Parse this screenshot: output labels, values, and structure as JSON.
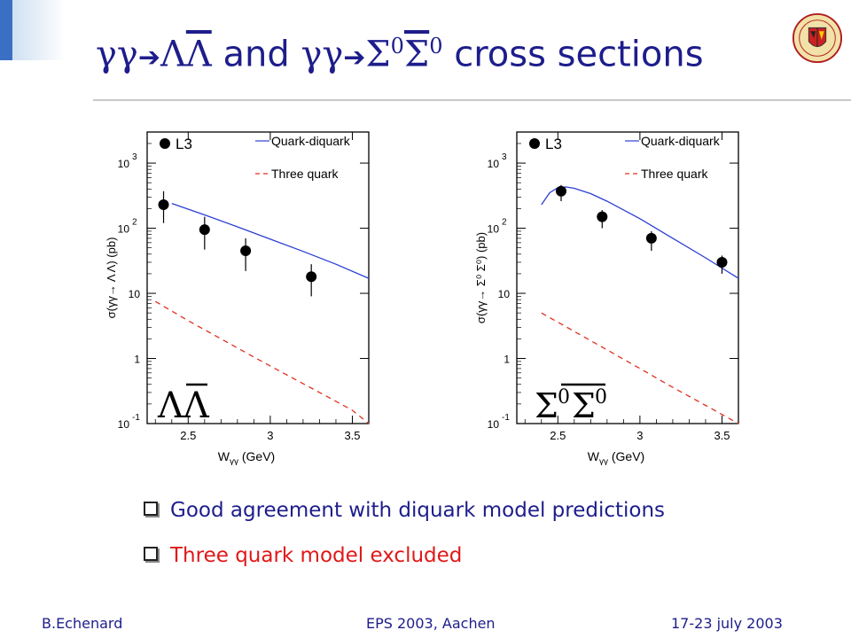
{
  "slide": {
    "title_gg1": "γγ",
    "title_arrow1": "➔",
    "title_lam1": "Λ",
    "title_lam2": "Λ",
    "title_and": "and",
    "title_gg2": "γγ",
    "title_arrow2": "➔",
    "title_sig1": "Σ",
    "title_sup1": "0",
    "title_sig2": "Σ",
    "title_sup2": "0",
    "title_rest": "cross sections"
  },
  "bullets": [
    {
      "text": "Good agreement  with diquark model predictions",
      "color": "#1d1d8c"
    },
    {
      "text": "Three quark model excluded",
      "color": "#e01818"
    }
  ],
  "footer": {
    "author": "B.Echenard",
    "conference": "EPS 2003, Aachen",
    "date": "17-23 july 2003"
  },
  "colors": {
    "accent": "#3a6fc4",
    "title": "#1d1d8c",
    "qd_line": "#2b3fd4",
    "tq_line": "#e0301e"
  },
  "icons": {
    "logo": "university-seal-icon"
  },
  "chart_data": [
    {
      "type": "line",
      "panel_label": "ΛΛ",
      "experiment_label": "L3",
      "xlabel": "W",
      "xlabel_sub": "γγ",
      "xlabel_unit": "(GeV)",
      "ylabel": "σ(γγ→ Λ Λ) (pb)",
      "xlim": [
        2.25,
        3.6
      ],
      "ylim": [
        0.1,
        3000
      ],
      "yscale": "log",
      "x_ticks": [
        "2.5",
        "3",
        "3.5"
      ],
      "x_tick_values": [
        2.5,
        3.0,
        3.5
      ],
      "y_ticks": [
        {
          "value": 1000,
          "base": "10",
          "exp": "3"
        },
        {
          "value": 100,
          "base": "10",
          "exp": "2"
        },
        {
          "value": 10,
          "base": "10",
          "exp": ""
        },
        {
          "value": 1,
          "base": "1",
          "exp": ""
        },
        {
          "value": 0.1,
          "base": "10",
          "exp": "-1"
        }
      ],
      "legend": [
        "Quark-diquark",
        "Three quark"
      ],
      "points": {
        "name": "L3",
        "x": [
          2.35,
          2.6,
          2.85,
          3.25
        ],
        "y": [
          230,
          95,
          45,
          18
        ],
        "err_lo": [
          120,
          47,
          22,
          9
        ],
        "err_hi": [
          370,
          150,
          70,
          28
        ]
      },
      "series": [
        {
          "name": "Quark-diquark",
          "style": "solid",
          "x": [
            2.4,
            2.6,
            2.8,
            3.0,
            3.2,
            3.4,
            3.6
          ],
          "y": [
            240,
            160,
            105,
            68,
            44,
            28,
            17
          ]
        },
        {
          "name": "Three quark",
          "style": "dashed",
          "x": [
            2.3,
            2.5,
            2.7,
            2.9,
            3.1,
            3.3,
            3.5,
            3.6
          ],
          "y": [
            7.5,
            3.8,
            2.0,
            1.05,
            0.56,
            0.3,
            0.16,
            0.1
          ]
        }
      ]
    },
    {
      "type": "line",
      "panel_label": "Σ0Σ0",
      "panel_label_parts": {
        "s1": "Σ",
        "sup1": "0",
        "s2": "Σ",
        "sup2": "0"
      },
      "experiment_label": "L3",
      "xlabel": "W",
      "xlabel_sub": "γγ",
      "xlabel_unit": "(GeV)",
      "ylabel": "σ(γγ→ Σ⁰ Σ⁰) (pb)",
      "xlim": [
        2.25,
        3.6
      ],
      "ylim": [
        0.1,
        3000
      ],
      "yscale": "log",
      "x_ticks": [
        "2.5",
        "3",
        "3.5"
      ],
      "x_tick_values": [
        2.5,
        3.0,
        3.5
      ],
      "y_ticks": [
        {
          "value": 1000,
          "base": "10",
          "exp": "3"
        },
        {
          "value": 100,
          "base": "10",
          "exp": "2"
        },
        {
          "value": 10,
          "base": "10",
          "exp": ""
        },
        {
          "value": 1,
          "base": "1",
          "exp": ""
        },
        {
          "value": 0.1,
          "base": "10",
          "exp": "-1"
        }
      ],
      "legend": [
        "Quark-diquark",
        "Three quark"
      ],
      "points": {
        "name": "L3",
        "x": [
          2.52,
          2.77,
          3.07,
          3.5
        ],
        "y": [
          370,
          150,
          70,
          30
        ],
        "err_lo": [
          260,
          100,
          45,
          20
        ],
        "err_hi": [
          460,
          190,
          90,
          38
        ]
      },
      "series": [
        {
          "name": "Quark-diquark",
          "style": "solid",
          "x": [
            2.4,
            2.45,
            2.5,
            2.55,
            2.6,
            2.7,
            2.8,
            3.0,
            3.2,
            3.4,
            3.6
          ],
          "y": [
            230,
            350,
            420,
            430,
            410,
            340,
            260,
            140,
            70,
            35,
            17
          ]
        },
        {
          "name": "Three quark",
          "style": "dashed",
          "x": [
            2.4,
            2.6,
            2.8,
            3.0,
            3.2,
            3.4,
            3.6
          ],
          "y": [
            5.0,
            2.6,
            1.35,
            0.7,
            0.36,
            0.19,
            0.1
          ]
        }
      ]
    }
  ]
}
